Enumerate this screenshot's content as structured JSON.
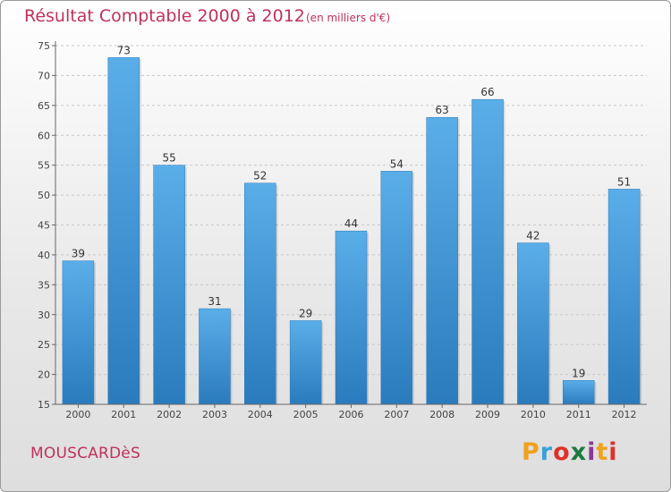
{
  "header": {
    "title": "Résultat Comptable 2000 à 2012",
    "subtitle": "(en milliers d'€)"
  },
  "footer": {
    "commune": "MOUSCARDèS",
    "logo": {
      "text": "Proxiti",
      "letters": [
        {
          "char": "P",
          "color": "#f0a21c"
        },
        {
          "char": "r",
          "color": "#3aa0d9"
        },
        {
          "char": "o",
          "color": "#e0302a"
        },
        {
          "char": "x",
          "color": "#1d7a3c"
        },
        {
          "char": "i",
          "color": "#8a3b96"
        },
        {
          "char": "t",
          "color": "#f0a21c"
        },
        {
          "char": "i",
          "color": "#e0302a"
        }
      ]
    }
  },
  "chart_data": {
    "type": "bar",
    "categories": [
      "2000",
      "2001",
      "2002",
      "2003",
      "2004",
      "2005",
      "2006",
      "2007",
      "2008",
      "2009",
      "2010",
      "2011",
      "2012"
    ],
    "values": [
      39,
      73,
      55,
      31,
      52,
      29,
      44,
      54,
      63,
      66,
      42,
      19,
      51
    ],
    "ylim": [
      15,
      75
    ],
    "yticks": [
      15,
      20,
      25,
      30,
      35,
      40,
      45,
      50,
      55,
      60,
      65,
      70,
      75
    ],
    "grid": true,
    "colors": {
      "bar_top": "#5aaee8",
      "bar_bottom": "#2a7bbd",
      "title": "#c0315c"
    }
  }
}
